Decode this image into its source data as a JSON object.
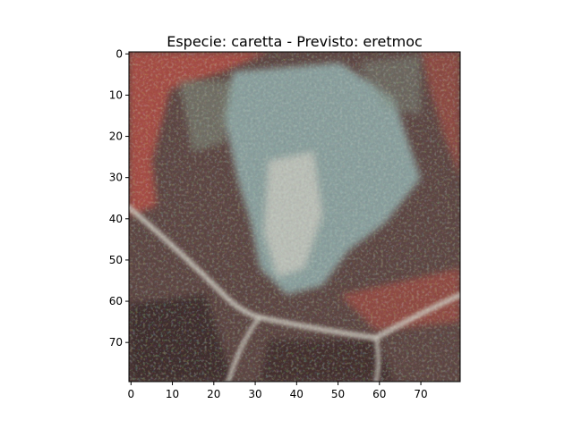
{
  "chart_data": {
    "type": "heatmap",
    "title": "Especie: caretta - Previsto: eretmoc",
    "xlabel": "",
    "ylabel": "",
    "xlim": [
      -0.5,
      79.5
    ],
    "ylim": [
      79.5,
      -0.5
    ],
    "x_ticks": [
      0,
      10,
      20,
      30,
      40,
      50,
      60,
      70
    ],
    "y_ticks": [
      0,
      10,
      20,
      30,
      40,
      50,
      60,
      70
    ],
    "x_tick_labels": [
      "0",
      "10",
      "20",
      "30",
      "40",
      "50",
      "60",
      "70"
    ],
    "y_tick_labels": [
      "0",
      "10",
      "20",
      "30",
      "40",
      "50",
      "60",
      "70"
    ],
    "grid": false,
    "image": {
      "rows": 80,
      "cols": 80,
      "description": "RGB satellite-like image patch: pale blue-grey textured region in the upper center, dark brown background, reddish border along the top-left, thin pale linear features running diagonally across the lower portion",
      "palette": {
        "background": "#5e4744",
        "dark": "#3f2c2c",
        "blue_grey": "#8fa8a6",
        "pale": "#c9c8bd",
        "red": "#b24f45",
        "green_grey": "#7e8a7c"
      }
    }
  }
}
